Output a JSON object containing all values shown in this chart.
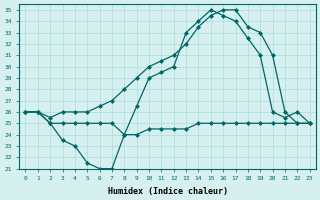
{
  "xlabel": "Humidex (Indice chaleur)",
  "ylabel": "",
  "bg_color": "#d6f0f0",
  "line_color": "#006666",
  "xlim": [
    -0.5,
    23.5
  ],
  "ylim": [
    21,
    35.5
  ],
  "yticks": [
    21,
    22,
    23,
    24,
    25,
    26,
    27,
    28,
    29,
    30,
    31,
    32,
    33,
    34,
    35
  ],
  "xticks": [
    0,
    1,
    2,
    3,
    4,
    5,
    6,
    7,
    8,
    9,
    10,
    11,
    12,
    13,
    14,
    15,
    16,
    17,
    18,
    19,
    20,
    21,
    22,
    23
  ],
  "line1_x": [
    0,
    1,
    2,
    3,
    4,
    5,
    6,
    7,
    8,
    9,
    10,
    11,
    12,
    13,
    14,
    15,
    16,
    17,
    18,
    19,
    20,
    21,
    22,
    23
  ],
  "line1_y": [
    26,
    26,
    25,
    23.5,
    23,
    21.5,
    21,
    21,
    24,
    26.5,
    29,
    29.5,
    30,
    33,
    34,
    35,
    34.5,
    34,
    32.5,
    31,
    26,
    25.5,
    26,
    25
  ],
  "line2_x": [
    0,
    1,
    2,
    3,
    4,
    5,
    6,
    7,
    8,
    9,
    10,
    11,
    12,
    13,
    14,
    15,
    16,
    17,
    18,
    19,
    20,
    21,
    22,
    23
  ],
  "line2_y": [
    26,
    26,
    25.5,
    26,
    26,
    26,
    26.5,
    27,
    28,
    29,
    30,
    30.5,
    31,
    32,
    33.5,
    34.5,
    35,
    35,
    33.5,
    33,
    31,
    26,
    25,
    25
  ],
  "line3_x": [
    0,
    1,
    2,
    3,
    4,
    5,
    6,
    7,
    8,
    9,
    10,
    11,
    12,
    13,
    14,
    15,
    16,
    17,
    18,
    19,
    20,
    21,
    22,
    23
  ],
  "line3_y": [
    26,
    26,
    25,
    25,
    25,
    25,
    25,
    25,
    24,
    24,
    24.5,
    24.5,
    24.5,
    24.5,
    25,
    25,
    25,
    25,
    25,
    25,
    25,
    25,
    25,
    25
  ]
}
